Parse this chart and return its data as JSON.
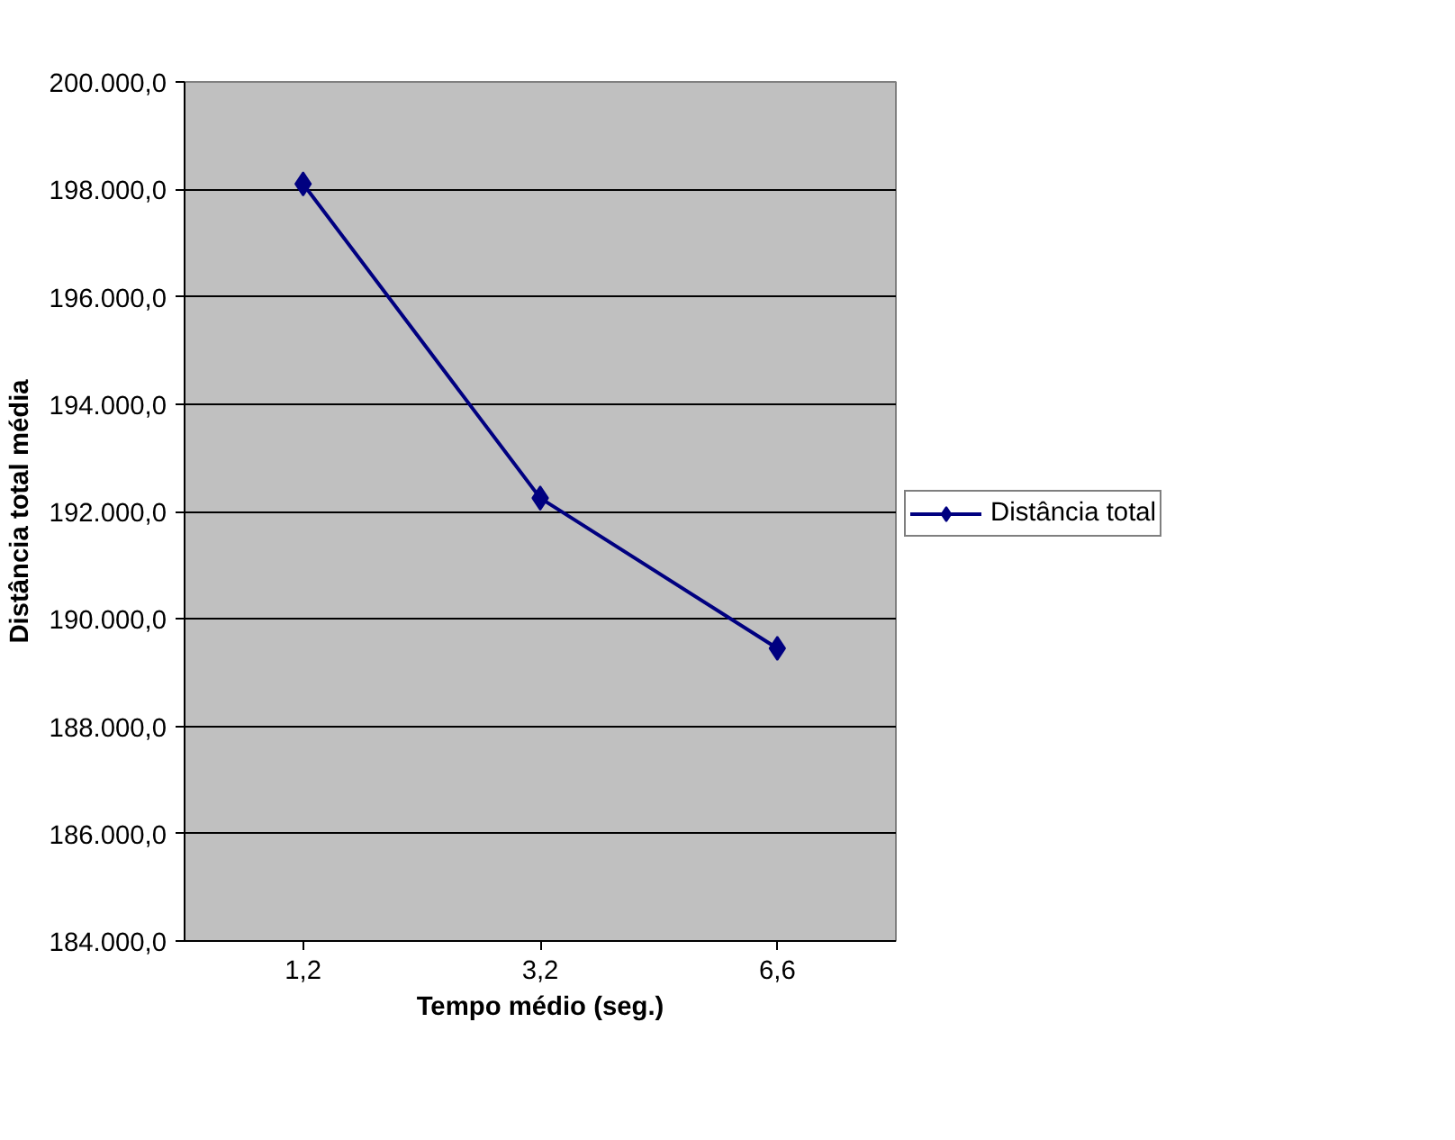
{
  "chart_data": {
    "type": "line",
    "xlabel": "Tempo médio (seg.)",
    "ylabel": "Distância total média",
    "categories": [
      "1,2",
      "3,2",
      "6,6"
    ],
    "series": [
      {
        "name": "Distância total",
        "color": "#000080",
        "values": [
          198100,
          192250,
          189450
        ]
      }
    ],
    "ylim": [
      184000,
      200000
    ],
    "yticks": [
      {
        "value": 184000,
        "label": "184.000,0"
      },
      {
        "value": 186000,
        "label": "186.000,0"
      },
      {
        "value": 188000,
        "label": "188.000,0"
      },
      {
        "value": 190000,
        "label": "190.000,0"
      },
      {
        "value": 192000,
        "label": "192.000,0"
      },
      {
        "value": 194000,
        "label": "194.000,0"
      },
      {
        "value": 196000,
        "label": "196.000,0"
      },
      {
        "value": 198000,
        "label": "198.000,0"
      },
      {
        "value": 200000,
        "label": "200.000,0"
      }
    ],
    "grid": "y",
    "legend": "right",
    "marker": "diamond",
    "line_style": "solid"
  }
}
